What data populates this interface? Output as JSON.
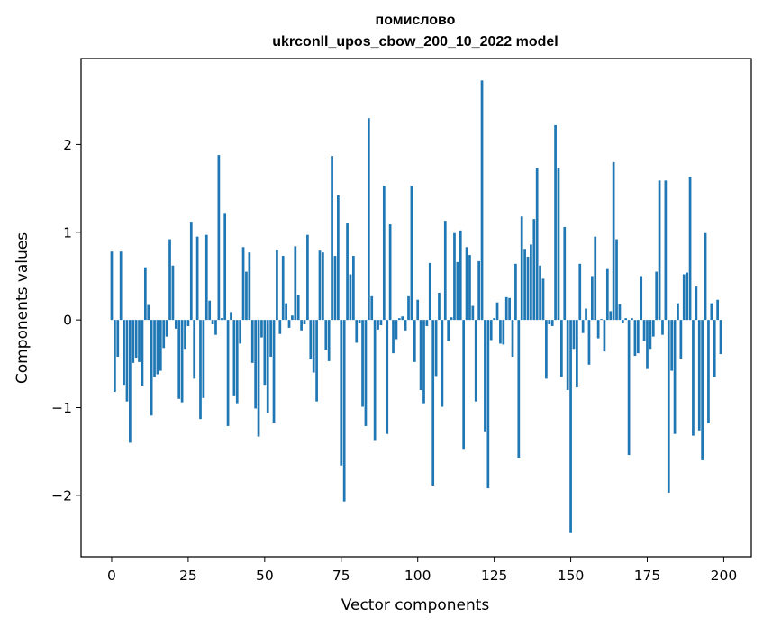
{
  "chart_data": {
    "type": "bar",
    "title_line1": "помислово",
    "title_line2": "ukrconll_upos_cbow_200_10_2022 model",
    "xlabel": "Vector components",
    "ylabel": "Components values",
    "xlim": [
      -10,
      209
    ],
    "ylim": [
      -2.7,
      2.98
    ],
    "xticks": [
      0,
      25,
      50,
      75,
      100,
      125,
      150,
      175,
      200
    ],
    "yticks": [
      -2,
      -1,
      0,
      1,
      2
    ],
    "ytick_labels": [
      "−2",
      "−1",
      "0",
      "1",
      "2"
    ],
    "bar_color": "#1f77b4",
    "values": [
      0.78,
      -0.82,
      -0.42,
      0.78,
      -0.74,
      -0.93,
      -1.4,
      -0.49,
      -0.43,
      -0.48,
      -0.75,
      0.6,
      0.17,
      -1.09,
      -0.65,
      -0.62,
      -0.58,
      -0.32,
      -0.19,
      0.92,
      0.62,
      -0.1,
      -0.9,
      -0.94,
      -0.33,
      -0.07,
      1.12,
      -0.67,
      0.95,
      -1.13,
      -0.89,
      0.97,
      0.22,
      -0.05,
      -0.17,
      1.88,
      0.02,
      1.22,
      -1.21,
      0.09,
      -0.87,
      -0.95,
      -0.27,
      0.83,
      0.55,
      0.77,
      -0.49,
      -1.01,
      -1.33,
      -0.2,
      -0.74,
      -1.06,
      -0.42,
      -1.17,
      0.8,
      -0.16,
      0.73,
      0.19,
      -0.09,
      0.05,
      0.84,
      0.28,
      -0.12,
      -0.05,
      0.97,
      -0.45,
      -0.6,
      -0.93,
      0.79,
      0.77,
      -0.34,
      -0.47,
      1.87,
      0.73,
      1.42,
      -1.66,
      -2.07,
      1.1,
      0.52,
      0.73,
      -0.26,
      -0.03,
      -0.99,
      -1.21,
      2.3,
      0.27,
      -1.37,
      -0.11,
      -0.06,
      1.53,
      -1.3,
      1.09,
      -0.38,
      -0.22,
      0.02,
      0.04,
      -0.12,
      0.27,
      1.53,
      -0.48,
      0.23,
      -0.8,
      -0.95,
      -0.07,
      0.65,
      -1.89,
      -0.64,
      0.31,
      -0.99,
      1.13,
      -0.24,
      0.03,
      0.99,
      0.66,
      1.02,
      -1.47,
      0.83,
      0.74,
      0.16,
      -0.93,
      0.67,
      2.73,
      -1.27,
      -1.92,
      -0.23,
      0.02,
      0.2,
      -0.27,
      -0.28,
      0.26,
      0.25,
      -0.42,
      0.64,
      -1.57,
      1.18,
      0.81,
      0.72,
      0.86,
      1.15,
      1.73,
      0.62,
      0.47,
      -0.67,
      -0.05,
      -0.07,
      2.22,
      1.73,
      -0.65,
      1.06,
      -0.8,
      -2.43,
      -0.33,
      -0.77,
      0.64,
      -0.15,
      0.13,
      -0.51,
      0.5,
      0.95,
      -0.21,
      0.01,
      -0.36,
      0.58,
      0.1,
      1.8,
      0.92,
      0.18,
      -0.04,
      0.02,
      -1.54,
      0.02,
      -0.41,
      -0.38,
      0.5,
      -0.24,
      -0.56,
      -0.33,
      -0.19,
      0.55,
      1.59,
      -0.17,
      1.59,
      -1.97,
      -0.58,
      -1.3,
      0.19,
      -0.44,
      0.52,
      0.54,
      1.63,
      -1.32,
      0.38,
      -1.26,
      -1.6,
      0.99,
      -1.18,
      0.19,
      -0.65,
      0.23,
      -0.39
    ]
  }
}
